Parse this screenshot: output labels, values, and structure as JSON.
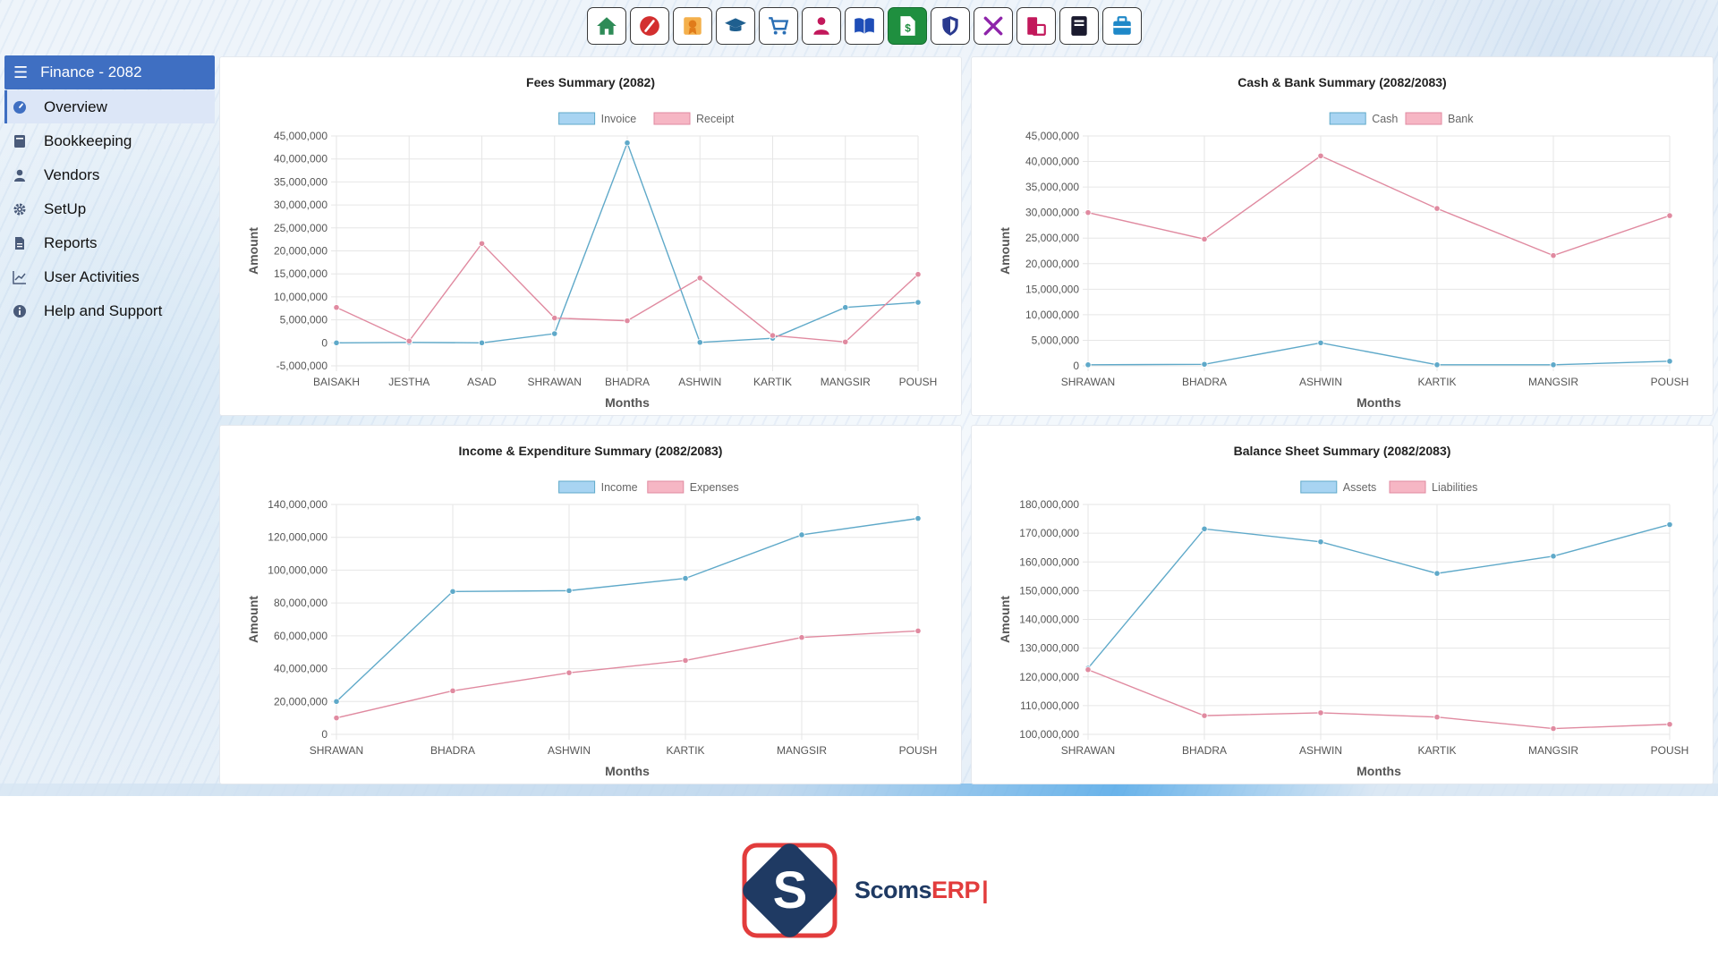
{
  "toolbar": {
    "icons": [
      "home-icon",
      "ruler-icon",
      "certificate-icon",
      "graduation-cap-icon",
      "cart-icon",
      "user-icon",
      "book-icon",
      "finance-icon",
      "shield-icon",
      "tools-icon",
      "transfer-icon",
      "notebook-icon",
      "toolbox-icon"
    ],
    "active": "finance-icon",
    "colors": [
      "#2e8b57",
      "#d32f2f",
      "#f0a030",
      "#1f5f8f",
      "#2a6fb5",
      "#c2185b",
      "#1e4db7",
      "#ffffff",
      "#2a3a8f",
      "#8e24aa",
      "#c2185b",
      "#1a1a2e",
      "#1e88c8"
    ]
  },
  "sidebar": {
    "title": "Finance - 2082",
    "items": [
      {
        "label": "Overview",
        "icon": "dashboard-icon",
        "active": true
      },
      {
        "label": "Bookkeeping",
        "icon": "ledger-icon",
        "active": false
      },
      {
        "label": "Vendors",
        "icon": "person-icon",
        "active": false
      },
      {
        "label": "SetUp",
        "icon": "gear-icon",
        "active": false
      },
      {
        "label": "Reports",
        "icon": "document-icon",
        "active": false
      },
      {
        "label": "User Activities",
        "icon": "line-chart-icon",
        "active": false
      },
      {
        "label": "Help and Support",
        "icon": "info-icon",
        "active": false
      }
    ]
  },
  "colors": {
    "series_blue": "#5fa9c9",
    "series_blue_legend": "#a8d4f2",
    "series_pink": "#e08aa0",
    "series_pink_legend": "#f6b6c4",
    "grid": "#e6e6e6",
    "accent": "#3f6fc2"
  },
  "chart_data": [
    {
      "id": "fees",
      "type": "line",
      "title": "Fees Summary (2082)",
      "xlabel": "Months",
      "ylabel": "Amount",
      "categories": [
        "BAISAKH",
        "JESTHA",
        "ASAD",
        "SHRAWAN",
        "BHADRA",
        "ASHWIN",
        "KARTIK",
        "MANGSIR",
        "POUSH"
      ],
      "series": [
        {
          "name": "Invoice",
          "values": [
            0,
            100000,
            0,
            2000000,
            43500000,
            100000,
            1000000,
            7700000,
            8800000
          ]
        },
        {
          "name": "Receipt",
          "values": [
            7700000,
            400000,
            21600000,
            5400000,
            4800000,
            14100000,
            1600000,
            200000,
            14900000
          ]
        }
      ],
      "ylim": [
        -5000000,
        45000000
      ],
      "yticks": [
        -5000000,
        0,
        5000000,
        10000000,
        15000000,
        20000000,
        25000000,
        30000000,
        35000000,
        40000000,
        45000000
      ],
      "ytick_labels": [
        "-5,000,000",
        "0",
        "5,000,000",
        "10,000,000",
        "15,000,000",
        "20,000,000",
        "25,000,000",
        "30,000,000",
        "35,000,000",
        "40,000,000",
        "45,000,000"
      ],
      "legend": "top-center"
    },
    {
      "id": "cashbank",
      "type": "line",
      "title": "Cash & Bank Summary (2082/2083)",
      "xlabel": "Months",
      "ylabel": "Amount",
      "categories": [
        "SHRAWAN",
        "BHADRA",
        "ASHWIN",
        "KARTIK",
        "MANGSIR",
        "POUSH"
      ],
      "series": [
        {
          "name": "Cash",
          "values": [
            200000,
            300000,
            4500000,
            200000,
            200000,
            900000
          ]
        },
        {
          "name": "Bank",
          "values": [
            30000000,
            24800000,
            41100000,
            30800000,
            21600000,
            29400000
          ]
        }
      ],
      "ylim": [
        0,
        45000000
      ],
      "yticks": [
        0,
        5000000,
        10000000,
        15000000,
        20000000,
        25000000,
        30000000,
        35000000,
        40000000,
        45000000
      ],
      "ytick_labels": [
        "0",
        "5,000,000",
        "10,000,000",
        "15,000,000",
        "20,000,000",
        "25,000,000",
        "30,000,000",
        "35,000,000",
        "40,000,000",
        "45,000,000"
      ],
      "legend": "top-center"
    },
    {
      "id": "incexp",
      "type": "line",
      "title": "Income & Expenditure Summary (2082/2083)",
      "xlabel": "Months",
      "ylabel": "Amount",
      "categories": [
        "SHRAWAN",
        "BHADRA",
        "ASHWIN",
        "KARTIK",
        "MANGSIR",
        "POUSH"
      ],
      "series": [
        {
          "name": "Income",
          "values": [
            20000000,
            87000000,
            87500000,
            95000000,
            121500000,
            131500000
          ]
        },
        {
          "name": "Expenses",
          "values": [
            10000000,
            26500000,
            37500000,
            45000000,
            59000000,
            63000000
          ]
        }
      ],
      "ylim": [
        0,
        140000000
      ],
      "yticks": [
        0,
        20000000,
        40000000,
        60000000,
        80000000,
        100000000,
        120000000,
        140000000
      ],
      "ytick_labels": [
        "0",
        "20,000,000",
        "40,000,000",
        "60,000,000",
        "80,000,000",
        "100,000,000",
        "120,000,000",
        "140,000,000"
      ],
      "legend": "top-center"
    },
    {
      "id": "balance",
      "type": "line",
      "title": "Balance Sheet Summary (2082/2083)",
      "xlabel": "Months",
      "ylabel": "Amount",
      "categories": [
        "SHRAWAN",
        "BHADRA",
        "ASHWIN",
        "KARTIK",
        "MANGSIR",
        "POUSH"
      ],
      "series": [
        {
          "name": "Assets",
          "values": [
            123000000,
            171500000,
            167000000,
            156000000,
            162000000,
            173000000
          ]
        },
        {
          "name": "Liabilities",
          "values": [
            122500000,
            106500000,
            107500000,
            106000000,
            102000000,
            103500000
          ]
        }
      ],
      "ylim": [
        100000000,
        180000000
      ],
      "yticks": [
        100000000,
        110000000,
        120000000,
        130000000,
        140000000,
        150000000,
        160000000,
        170000000,
        180000000
      ],
      "ytick_labels": [
        "100,000,000",
        "110,000,000",
        "120,000,000",
        "130,000,000",
        "140,000,000",
        "150,000,000",
        "160,000,000",
        "170,000,000",
        "180,000,000"
      ],
      "legend": "top-center"
    }
  ],
  "logo": {
    "text_part1": "Scoms",
    "text_part2": "ERP"
  }
}
